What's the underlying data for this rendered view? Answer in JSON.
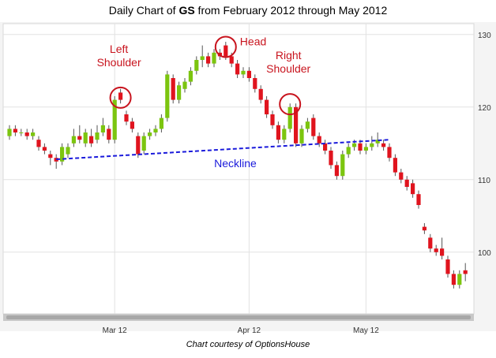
{
  "chart_data": {
    "type": "candlestick",
    "title_parts": [
      "Daily Chart of ",
      "GS",
      " from February 2012 through May 2012"
    ],
    "footer": "Chart courtesy of OptionsHouse",
    "categories": [
      null,
      null,
      null,
      null,
      null,
      null,
      null,
      null,
      null,
      null,
      null,
      null,
      null,
      null,
      null,
      null,
      null,
      null,
      "Mar 12",
      null,
      null,
      null,
      null,
      null,
      null,
      null,
      null,
      null,
      null,
      null,
      null,
      null,
      null,
      null,
      null,
      null,
      null,
      null,
      null,
      null,
      null,
      "Apr 12",
      null,
      null,
      null,
      null,
      null,
      null,
      null,
      null,
      null,
      null,
      null,
      null,
      null,
      null,
      null,
      null,
      null,
      null,
      null,
      "May 12",
      null,
      null,
      null,
      null,
      null,
      null,
      null,
      null,
      null,
      null,
      null,
      null,
      null,
      null,
      null,
      null,
      null
    ],
    "open": [
      116,
      117,
      116.5,
      116.5,
      116,
      115.5,
      114.5,
      113.5,
      113,
      112.5,
      113.5,
      115,
      116,
      115,
      116,
      115.5,
      116.5,
      117,
      115.5,
      122,
      119,
      118,
      116,
      114,
      116,
      116.5,
      117,
      118.5,
      124,
      121,
      122.5,
      123.5,
      125,
      126.5,
      127,
      126,
      127.5,
      128.5,
      127,
      126,
      124.5,
      125,
      124,
      122.5,
      121,
      119,
      117.5,
      115.5,
      117,
      120,
      115,
      117,
      118.5,
      116,
      115,
      114,
      112,
      110.5,
      113.5,
      114.5,
      115,
      114,
      114.5,
      115,
      115,
      114.5,
      113,
      111,
      110,
      109.5,
      108,
      103.5,
      102,
      100.5,
      100.5,
      99,
      97,
      95.5,
      97.5
    ],
    "high": [
      117.5,
      117.5,
      117,
      117,
      117,
      116,
      115,
      114,
      113.5,
      115,
      115,
      117,
      117.5,
      117,
      117,
      117.5,
      118.5,
      117.5,
      121.5,
      122.5,
      119.5,
      118.5,
      116.5,
      116.5,
      117,
      117.5,
      119,
      125,
      124.5,
      123.5,
      124,
      125.5,
      127,
      128.5,
      127.5,
      128,
      128,
      129,
      127.5,
      126.5,
      125.5,
      125.5,
      124.5,
      123,
      121.5,
      119.5,
      118,
      117.5,
      120.5,
      120.5,
      117.5,
      118.5,
      119,
      116.5,
      115.5,
      114.5,
      112.5,
      114,
      115,
      115.5,
      115.5,
      115,
      116,
      116.5,
      115.5,
      115,
      113.5,
      111.5,
      110.5,
      110,
      108.5,
      104,
      102.5,
      101,
      102,
      99.5,
      97.5,
      97.5,
      98.5
    ],
    "low": [
      115.5,
      116,
      116,
      115.5,
      115.5,
      114,
      113.5,
      112,
      111.5,
      112,
      113,
      114.5,
      115,
      114.5,
      114.5,
      115,
      116,
      115,
      115,
      120.5,
      117.5,
      116.5,
      113,
      113.5,
      115.5,
      116,
      116.5,
      118,
      120.5,
      120.5,
      122,
      123,
      124.5,
      125.5,
      125.5,
      125.5,
      126.5,
      126.5,
      125.5,
      124,
      124,
      123.5,
      122,
      120.5,
      118.5,
      117,
      115,
      115,
      116.5,
      114.5,
      114.5,
      116.5,
      115.5,
      114.5,
      113.5,
      111.5,
      110,
      110,
      113,
      114,
      113.5,
      113.5,
      114,
      114.5,
      114,
      112.5,
      110.5,
      109.5,
      108.5,
      107.5,
      106,
      102.5,
      100,
      99.5,
      99,
      96.5,
      95,
      95,
      96
    ],
    "close": [
      117,
      116.5,
      116.5,
      116,
      116.5,
      114.5,
      114,
      113,
      112.5,
      114.5,
      114.5,
      116,
      115.5,
      116.5,
      115,
      116.5,
      117.5,
      115.5,
      121,
      121,
      118,
      117,
      113.5,
      116,
      116.5,
      117,
      118.5,
      124.5,
      121,
      123,
      123.5,
      125,
      126.5,
      127,
      126,
      127.5,
      127,
      127,
      126,
      124.5,
      125,
      124,
      122.5,
      121,
      119,
      117.5,
      115.5,
      117,
      120,
      115,
      117,
      118,
      116,
      115,
      114,
      112,
      110.5,
      113.5,
      114.5,
      115,
      114,
      114.5,
      115,
      115.5,
      114.5,
      113,
      111,
      110,
      109,
      108,
      106.5,
      103,
      100.5,
      100,
      99.5,
      97,
      95.5,
      97,
      97
    ],
    "up_color": "#7cc50f",
    "down_color": "#e0141e",
    "ylim": [
      91.5,
      131.5
    ],
    "yticks": [
      100,
      110,
      120,
      130
    ],
    "grid": true,
    "annotations": [
      {
        "lines": [
          "Left",
          "Shoulder"
        ],
        "x": 19,
        "y": 121.3,
        "placement": "above"
      },
      {
        "lines": [
          "Head"
        ],
        "x": 37,
        "y": 128.3,
        "placement": "right"
      },
      {
        "lines": [
          "Right",
          "Shoulder"
        ],
        "x": 48,
        "y": 120.4,
        "placement": "above"
      }
    ],
    "neckline": {
      "text": "Neckline",
      "x": [
        8,
        65
      ],
      "y": [
        112.8,
        115.5
      ],
      "color": "#1a1adb"
    },
    "annotation_color": "#c8141e"
  }
}
